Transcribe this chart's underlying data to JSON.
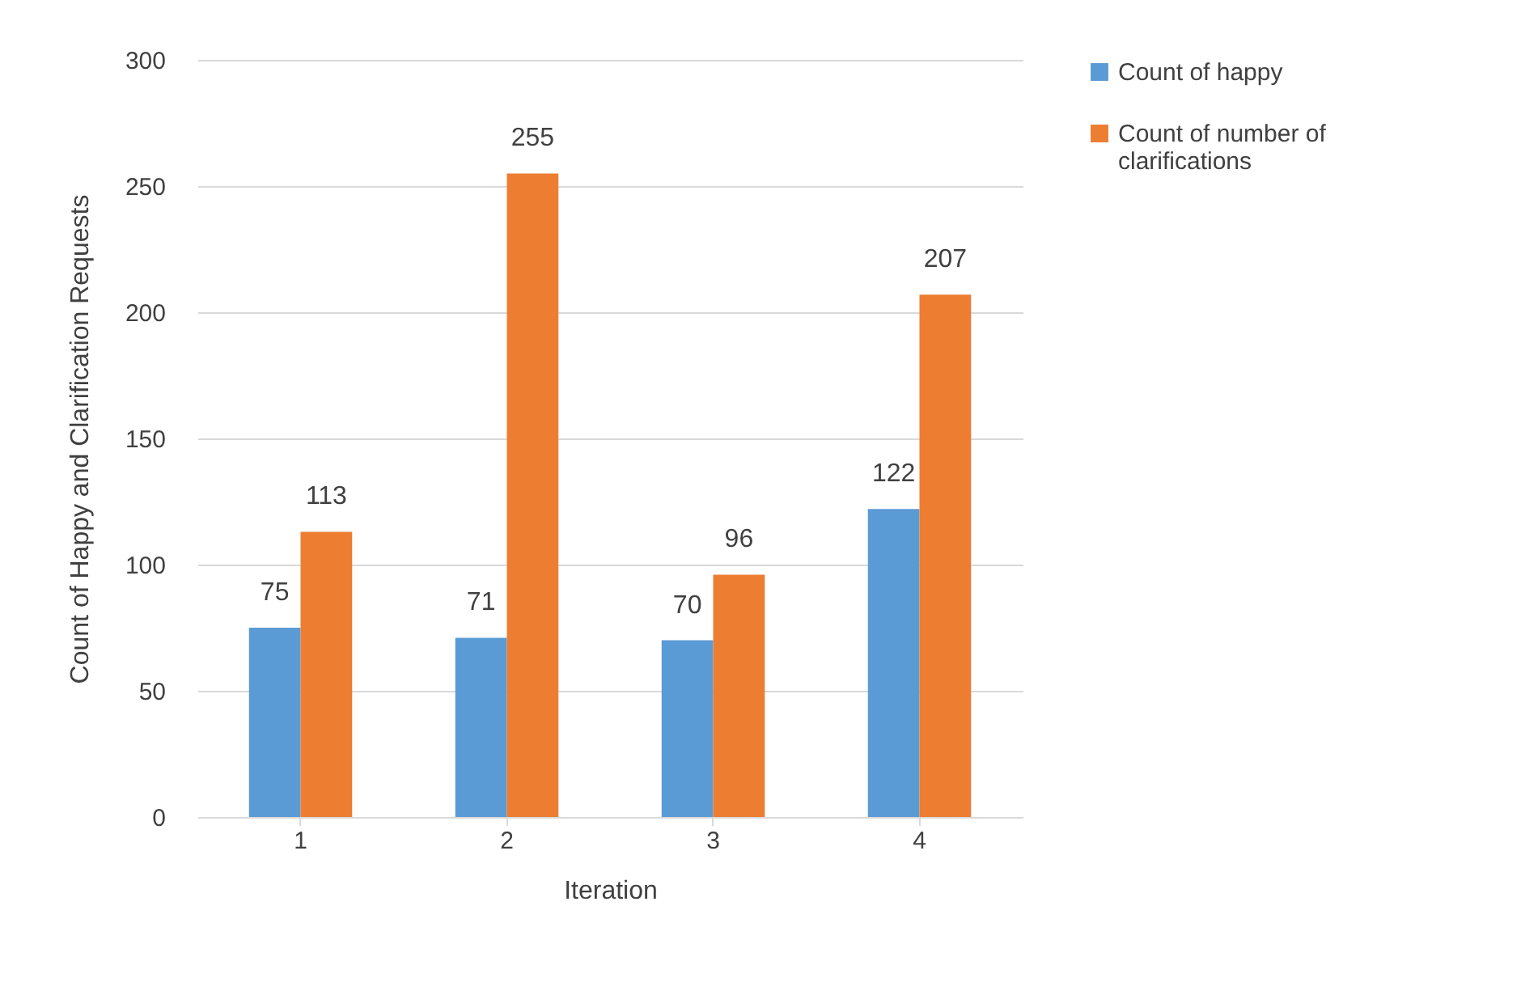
{
  "chart_data": {
    "type": "bar",
    "xlabel": "Iteration",
    "ylabel": "Count of Happy and Clarification Requests",
    "categories": [
      "1",
      "2",
      "3",
      "4"
    ],
    "series": [
      {
        "name": "Count of happy",
        "color": "#5b9bd5",
        "values": [
          75,
          71,
          70,
          122
        ]
      },
      {
        "name": "Count of number of clarifications",
        "color": "#ed7d31",
        "values": [
          113,
          255,
          96,
          207
        ]
      }
    ],
    "ylim": [
      0,
      300
    ],
    "yticks": [
      0,
      50,
      100,
      150,
      200,
      250,
      300
    ],
    "grid": "y",
    "legend": "right",
    "data_labels": true
  }
}
